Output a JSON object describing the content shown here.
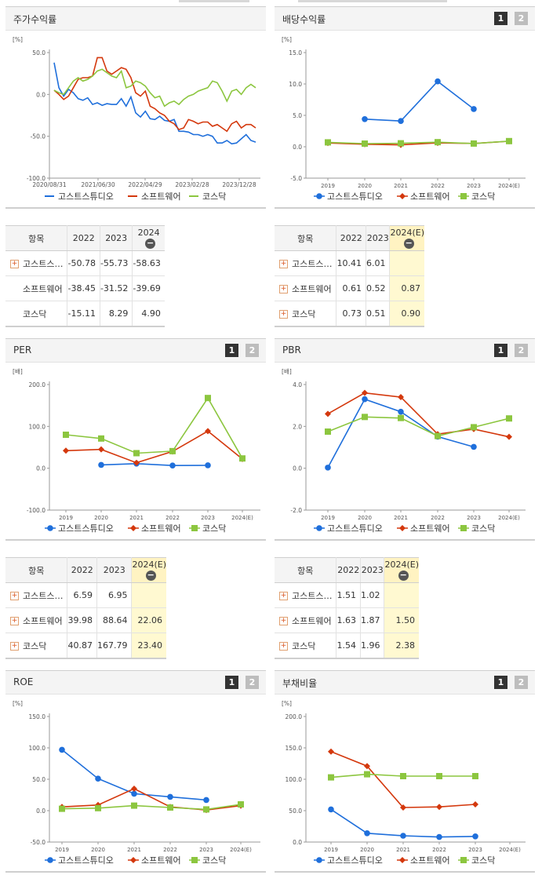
{
  "colors": {
    "blue": "#1f6fdb",
    "red": "#d4380d",
    "green": "#8cc63f"
  },
  "legend_names": [
    "고스트스튜디오",
    "소프트웨어",
    "코스닥"
  ],
  "icons": {
    "expand": "plus-square-icon",
    "collapse": "minus-circle-icon"
  },
  "pages": [
    "1",
    "2"
  ],
  "charts": [
    {
      "id": "stock",
      "title": "주가수익률",
      "unit": "[%]",
      "pager": false,
      "chart_data": {
        "type": "line",
        "ylim": [
          -100,
          50
        ],
        "yticks": [
          "50.0",
          "0.0",
          "-50.0",
          "-100.0"
        ],
        "ytick_values": [
          50,
          0,
          -50,
          -100
        ],
        "x_labels": [
          "2020/08/31",
          "2021/06/30",
          "2022/04/29",
          "2023/02/28",
          "2023/12/28"
        ],
        "series": [
          {
            "name": "고스트스튜디오",
            "color": "#1f6fdb",
            "values": [
              38,
              8,
              -2,
              6,
              2,
              -5,
              -7,
              -4,
              -12,
              -10,
              -13,
              -11,
              -12,
              -12,
              -5,
              -14,
              -3,
              -22,
              -27,
              -20,
              -29,
              -30,
              -26,
              -31,
              -32,
              -30,
              -44,
              -44,
              -45,
              -48,
              -48,
              -50,
              -48,
              -50,
              -58,
              -58,
              -55,
              -59,
              -58,
              -53,
              -48,
              -55,
              -57
            ]
          },
          {
            "name": "소프트웨어",
            "color": "#d4380d",
            "values": [
              5,
              0,
              -6,
              -2,
              8,
              18,
              20,
              20,
              22,
              44,
              44,
              28,
              24,
              28,
              32,
              30,
              20,
              2,
              -2,
              4,
              -14,
              -17,
              -22,
              -25,
              -32,
              -35,
              -42,
              -40,
              -30,
              -32,
              -35,
              -33,
              -33,
              -38,
              -36,
              -40,
              -44,
              -35,
              -32,
              -40,
              -36,
              -36,
              -40
            ]
          },
          {
            "name": "코스닥",
            "color": "#8cc63f",
            "values": [
              5,
              2,
              0,
              8,
              16,
              20,
              16,
              18,
              22,
              28,
              30,
              26,
              22,
              20,
              28,
              8,
              10,
              16,
              14,
              10,
              2,
              -4,
              -2,
              -14,
              -10,
              -8,
              -12,
              -6,
              -2,
              0,
              4,
              6,
              8,
              16,
              14,
              4,
              -8,
              4,
              6,
              0,
              8,
              12,
              8
            ]
          }
        ]
      }
    },
    {
      "id": "dividend",
      "title": "배당수익률",
      "unit": "[%]",
      "pager": true,
      "chart_data": {
        "type": "line",
        "ylim": [
          -5,
          15
        ],
        "yticks": [
          "15.0",
          "10.0",
          "5.0",
          "0.0",
          "-5.0"
        ],
        "ytick_values": [
          15,
          10,
          5,
          0,
          -5
        ],
        "categories": [
          "2019",
          "2020",
          "2021",
          "2022",
          "2023",
          "2024(E)"
        ],
        "series": [
          {
            "name": "고스트스튜디오",
            "color": "#1f6fdb",
            "marker": "circle",
            "values": [
              null,
              4.4,
              4.1,
              10.41,
              6.01,
              null
            ]
          },
          {
            "name": "소프트웨어",
            "color": "#d4380d",
            "marker": "diamond",
            "values": [
              0.6,
              0.4,
              0.3,
              0.61,
              0.52,
              0.87
            ]
          },
          {
            "name": "코스닥",
            "color": "#8cc63f",
            "marker": "square",
            "values": [
              0.7,
              0.5,
              0.55,
              0.73,
              0.51,
              0.9
            ]
          }
        ]
      }
    },
    {
      "id": "per",
      "title": "PER",
      "unit": "[배]",
      "pager": true,
      "chart_data": {
        "type": "line",
        "ylim": [
          -100,
          200
        ],
        "yticks": [
          "200.0",
          "100.0",
          "0.0",
          "-100.0"
        ],
        "ytick_values": [
          200,
          100,
          0,
          -100
        ],
        "categories": [
          "2019",
          "2020",
          "2021",
          "2022",
          "2023",
          "2024(E)"
        ],
        "series": [
          {
            "name": "고스트스튜디오",
            "color": "#1f6fdb",
            "marker": "circle",
            "values": [
              null,
              8,
              11,
              6.59,
              6.95,
              null
            ]
          },
          {
            "name": "소프트웨어",
            "color": "#d4380d",
            "marker": "diamond",
            "values": [
              42,
              45,
              13,
              39.98,
              88.64,
              22.06
            ]
          },
          {
            "name": "코스닥",
            "color": "#8cc63f",
            "marker": "square",
            "values": [
              80,
              71,
              36,
              40.87,
              167.79,
              23.4
            ]
          }
        ]
      }
    },
    {
      "id": "pbr",
      "title": "PBR",
      "unit": "[배]",
      "pager": true,
      "chart_data": {
        "type": "line",
        "ylim": [
          -2,
          4
        ],
        "yticks": [
          "4.0",
          "2.0",
          "0.0",
          "-2.0"
        ],
        "ytick_values": [
          4,
          2,
          0,
          -2
        ],
        "categories": [
          "2019",
          "2020",
          "2021",
          "2022",
          "2023",
          "2024(E)"
        ],
        "series": [
          {
            "name": "고스트스튜디오",
            "color": "#1f6fdb",
            "marker": "circle",
            "values": [
              0.03,
              3.3,
              2.7,
              1.51,
              1.02,
              null
            ]
          },
          {
            "name": "소프트웨어",
            "color": "#d4380d",
            "marker": "diamond",
            "values": [
              2.6,
              3.6,
              3.4,
              1.63,
              1.87,
              1.5
            ]
          },
          {
            "name": "코스닥",
            "color": "#8cc63f",
            "marker": "square",
            "values": [
              1.75,
              2.45,
              2.4,
              1.54,
              1.96,
              2.38
            ]
          }
        ]
      }
    },
    {
      "id": "roe",
      "title": "ROE",
      "unit": "[%]",
      "pager": true,
      "chart_data": {
        "type": "line",
        "ylim": [
          -50,
          150
        ],
        "yticks": [
          "150.0",
          "100.0",
          "50.0",
          "0.0",
          "-50.0"
        ],
        "ytick_values": [
          150,
          100,
          50,
          0,
          -50
        ],
        "categories": [
          "2019",
          "2020",
          "2021",
          "2022",
          "2023",
          "2024(E)"
        ],
        "series": [
          {
            "name": "고스트스튜디오",
            "color": "#1f6fdb",
            "marker": "circle",
            "values": [
              97,
              51,
              27,
              22,
              17,
              null
            ]
          },
          {
            "name": "소프트웨어",
            "color": "#d4380d",
            "marker": "diamond",
            "values": [
              6,
              9,
              35,
              6,
              1,
              8
            ]
          },
          {
            "name": "코스닥",
            "color": "#8cc63f",
            "marker": "square",
            "values": [
              3,
              4,
              8,
              5,
              2,
              10
            ]
          }
        ]
      }
    },
    {
      "id": "debt",
      "title": "부채비율",
      "unit": "[%]",
      "pager": true,
      "chart_data": {
        "type": "line",
        "ylim": [
          0,
          200
        ],
        "yticks": [
          "200.0",
          "150.0",
          "100.0",
          "50.0",
          "0.0"
        ],
        "ytick_values": [
          200,
          150,
          100,
          50,
          0
        ],
        "categories": [
          "2019",
          "2020",
          "2021",
          "2022",
          "2023",
          "2024(E)"
        ],
        "series": [
          {
            "name": "고스트스튜디오",
            "color": "#1f6fdb",
            "marker": "circle",
            "values": [
              52,
              14,
              10,
              8,
              9,
              null
            ]
          },
          {
            "name": "소프트웨어",
            "color": "#d4380d",
            "marker": "diamond",
            "values": [
              144,
              121,
              55,
              56,
              60,
              null
            ]
          },
          {
            "name": "코스닥",
            "color": "#8cc63f",
            "marker": "square",
            "values": [
              103,
              108,
              105,
              105,
              105,
              null
            ]
          }
        ]
      }
    }
  ],
  "tables": [
    {
      "id": "stock",
      "header": [
        "항목",
        "2022",
        "2023",
        "2024"
      ],
      "est_col": false,
      "rows": [
        {
          "label": "고스트스…",
          "expand": true,
          "values": [
            "-50.78",
            "-55.73",
            "-58.63"
          ]
        },
        {
          "label": "소프트웨어",
          "expand": false,
          "values": [
            "-38.45",
            "-31.52",
            "-39.69"
          ]
        },
        {
          "label": "코스닥",
          "expand": false,
          "values": [
            "-15.11",
            "8.29",
            "4.90"
          ]
        }
      ]
    },
    {
      "id": "dividend",
      "header": [
        "항목",
        "2022",
        "2023",
        "2024(E)"
      ],
      "est_col": true,
      "rows": [
        {
          "label": "고스트스…",
          "expand": true,
          "values": [
            "10.41",
            "6.01",
            ""
          ]
        },
        {
          "label": "소프트웨어",
          "expand": true,
          "values": [
            "0.61",
            "0.52",
            "0.87"
          ]
        },
        {
          "label": "코스닥",
          "expand": true,
          "values": [
            "0.73",
            "0.51",
            "0.90"
          ]
        }
      ]
    },
    {
      "id": "per",
      "header": [
        "항목",
        "2022",
        "2023",
        "2024(E)"
      ],
      "est_col": true,
      "rows": [
        {
          "label": "고스트스…",
          "expand": true,
          "values": [
            "6.59",
            "6.95",
            ""
          ]
        },
        {
          "label": "소프트웨어",
          "expand": true,
          "values": [
            "39.98",
            "88.64",
            "22.06"
          ]
        },
        {
          "label": "코스닥",
          "expand": true,
          "values": [
            "40.87",
            "167.79",
            "23.40"
          ]
        }
      ]
    },
    {
      "id": "pbr",
      "header": [
        "항목",
        "2022",
        "2023",
        "2024(E)"
      ],
      "est_col": true,
      "rows": [
        {
          "label": "고스트스…",
          "expand": true,
          "values": [
            "1.51",
            "1.02",
            ""
          ]
        },
        {
          "label": "소프트웨어",
          "expand": true,
          "values": [
            "1.63",
            "1.87",
            "1.50"
          ]
        },
        {
          "label": "코스닥",
          "expand": true,
          "values": [
            "1.54",
            "1.96",
            "2.38"
          ]
        }
      ]
    }
  ]
}
